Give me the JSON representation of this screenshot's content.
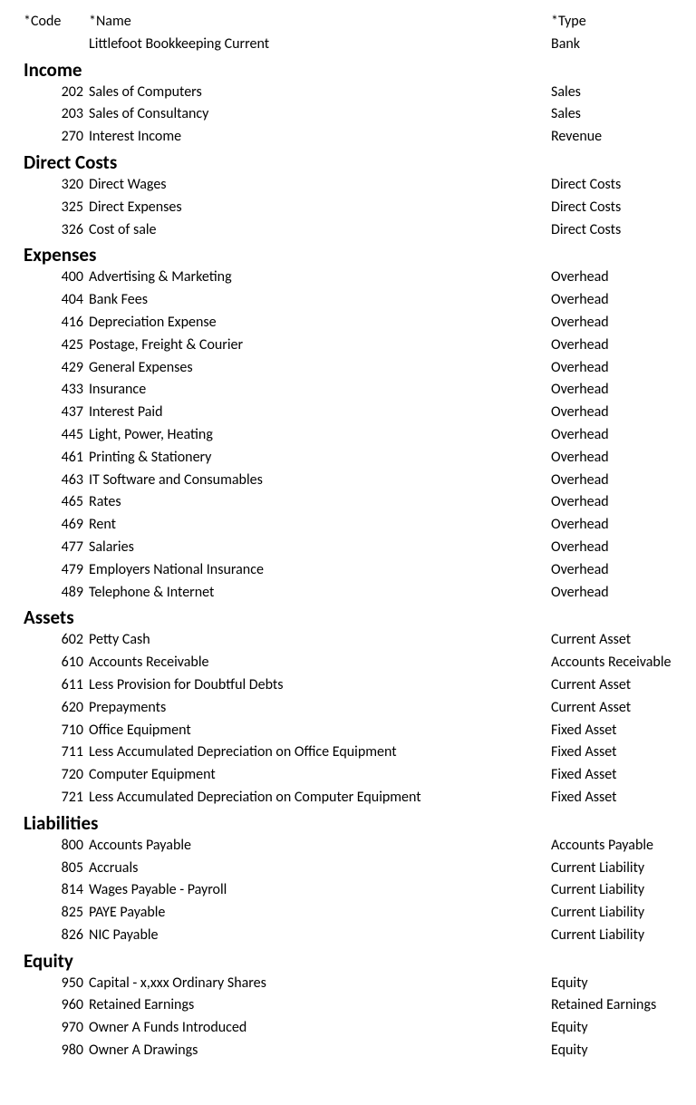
{
  "headers": {
    "code": "*Code",
    "name": "*Name",
    "type": "*Type"
  },
  "top_row": {
    "code": "",
    "name": "Littlefoot Bookkeeping Current",
    "type": "Bank"
  },
  "sections": [
    {
      "title": "Income",
      "rows": [
        {
          "code": "202",
          "name": "Sales of Computers",
          "type": "Sales"
        },
        {
          "code": "203",
          "name": "Sales of Consultancy",
          "type": "Sales"
        },
        {
          "code": "270",
          "name": "Interest Income",
          "type": "Revenue"
        }
      ]
    },
    {
      "title": "Direct Costs",
      "rows": [
        {
          "code": "320",
          "name": "Direct Wages",
          "type": "Direct Costs"
        },
        {
          "code": "325",
          "name": "Direct Expenses",
          "type": "Direct Costs"
        },
        {
          "code": "326",
          "name": "Cost of sale",
          "type": "Direct Costs"
        }
      ]
    },
    {
      "title": "Expenses",
      "rows": [
        {
          "code": "400",
          "name": "Advertising & Marketing",
          "type": "Overhead"
        },
        {
          "code": "404",
          "name": "Bank Fees",
          "type": "Overhead"
        },
        {
          "code": "416",
          "name": "Depreciation Expense",
          "type": "Overhead"
        },
        {
          "code": "425",
          "name": "Postage, Freight & Courier",
          "type": "Overhead"
        },
        {
          "code": "429",
          "name": "General Expenses",
          "type": "Overhead"
        },
        {
          "code": "433",
          "name": "Insurance",
          "type": "Overhead"
        },
        {
          "code": "437",
          "name": "Interest Paid",
          "type": "Overhead"
        },
        {
          "code": "445",
          "name": "Light, Power, Heating",
          "type": "Overhead"
        },
        {
          "code": "461",
          "name": "Printing & Stationery",
          "type": "Overhead"
        },
        {
          "code": "463",
          "name": "IT Software and Consumables",
          "type": "Overhead"
        },
        {
          "code": "465",
          "name": "Rates",
          "type": "Overhead"
        },
        {
          "code": "469",
          "name": "Rent",
          "type": "Overhead"
        },
        {
          "code": "477",
          "name": "Salaries",
          "type": "Overhead"
        },
        {
          "code": "479",
          "name": "Employers National Insurance",
          "type": "Overhead"
        },
        {
          "code": "489",
          "name": "Telephone & Internet",
          "type": "Overhead"
        }
      ]
    },
    {
      "title": "Assets",
      "rows": [
        {
          "code": "602",
          "name": "Petty Cash",
          "type": "Current Asset"
        },
        {
          "code": "610",
          "name": "Accounts Receivable",
          "type": "Accounts Receivable"
        },
        {
          "code": "611",
          "name": "Less Provision for Doubtful Debts",
          "type": "Current Asset"
        },
        {
          "code": "620",
          "name": "Prepayments",
          "type": "Current Asset"
        },
        {
          "code": "710",
          "name": "Office Equipment",
          "type": "Fixed Asset"
        },
        {
          "code": "711",
          "name": "Less Accumulated Depreciation on Office Equipment",
          "type": "Fixed Asset"
        },
        {
          "code": "720",
          "name": "Computer Equipment",
          "type": "Fixed Asset"
        },
        {
          "code": "721",
          "name": "Less Accumulated Depreciation on Computer Equipment",
          "type": "Fixed Asset"
        }
      ]
    },
    {
      "title": "Liabilities",
      "rows": [
        {
          "code": "800",
          "name": "Accounts Payable",
          "type": "Accounts Payable"
        },
        {
          "code": "805",
          "name": "Accruals",
          "type": "Current Liability"
        },
        {
          "code": "814",
          "name": "Wages Payable - Payroll",
          "type": "Current Liability"
        },
        {
          "code": "825",
          "name": "PAYE Payable",
          "type": "Current Liability"
        },
        {
          "code": "826",
          "name": "NIC Payable",
          "type": "Current Liability"
        }
      ]
    },
    {
      "title": "Equity",
      "rows": [
        {
          "code": "950",
          "name": "Capital - x,xxx Ordinary Shares",
          "type": "Equity"
        },
        {
          "code": "960",
          "name": "Retained Earnings",
          "type": "Retained Earnings"
        },
        {
          "code": "970",
          "name": "Owner A Funds Introduced",
          "type": "Equity"
        },
        {
          "code": "980",
          "name": "Owner A Drawings",
          "type": "Equity"
        }
      ]
    }
  ]
}
